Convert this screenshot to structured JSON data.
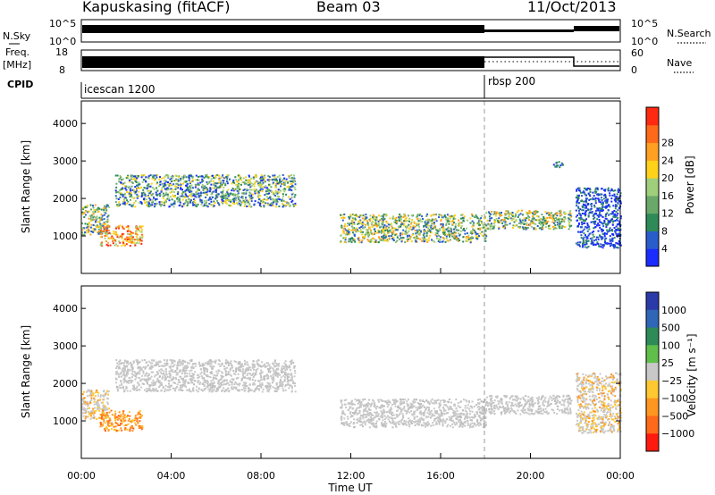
{
  "header": {
    "station": "Kapuskasing (fitACF)",
    "beam": "Beam 03",
    "date": "11/Oct/2013"
  },
  "sidepanels": {
    "nsky_label": "N.Sky",
    "nsky_ticks": [
      "10^5",
      "10^0"
    ],
    "nsearch_label": "N.Search",
    "nsearch_ticks": [
      "10^5",
      "10^0"
    ],
    "freq_label": "Freq.",
    "freq_unit": "[MHz]",
    "freq_ticks": [
      "18",
      "8"
    ],
    "nave_label": "Nave",
    "nave_ticks": [
      "60",
      "0"
    ],
    "cpid_label": "CPID",
    "cpid_segments": [
      {
        "name": "icescan 1200",
        "start_hour": 0
      },
      {
        "name": "rbsp 200",
        "start_hour": 18
      }
    ]
  },
  "axes": {
    "y_label": "Slant Range [km]",
    "y_ticks": [
      "1000",
      "2000",
      "3000",
      "4000"
    ],
    "x_label": "Time UT",
    "x_ticks": [
      "00:00",
      "04:00",
      "08:00",
      "12:00",
      "16:00",
      "20:00",
      "00:00"
    ]
  },
  "colorbars": {
    "power": {
      "label": "Power [dB]",
      "ticks": [
        "4",
        "8",
        "12",
        "16",
        "20",
        "24",
        "28"
      ],
      "colors": [
        "#1a2cff",
        "#2a5dcc",
        "#2e8b57",
        "#6aa86a",
        "#9fcf7a",
        "#ffd21a",
        "#ffa020",
        "#ff6a1a",
        "#ff2a10"
      ]
    },
    "velocity": {
      "label": "Velocity [m s⁻¹]",
      "ticks": [
        "1000",
        "500",
        "100",
        "25",
        "−25",
        "−100",
        "−500",
        "−1000"
      ],
      "colors": [
        "#2a3aa8",
        "#2f66b8",
        "#2e8b57",
        "#5fbf4a",
        "#c8c8c8",
        "#ffc830",
        "#ff9620",
        "#ff6a1a",
        "#ff1a10"
      ]
    }
  },
  "chart_data": [
    {
      "type": "heatmap",
      "name": "Power",
      "x_unit": "hours UT",
      "y_unit": "km",
      "xlim": [
        0,
        24
      ],
      "ylim": [
        0,
        4600
      ],
      "zlabel": "Power [dB]",
      "zlim": [
        0,
        32
      ],
      "regions": [
        {
          "t0": 0.0,
          "t1": 1.2,
          "r0": 1050,
          "r1": 1850,
          "level": "mid"
        },
        {
          "t0": 0.8,
          "t1": 2.7,
          "r0": 750,
          "r1": 1300,
          "level": "high"
        },
        {
          "t0": 1.5,
          "t1": 9.5,
          "r0": 1800,
          "r1": 2650,
          "level": "low-mid"
        },
        {
          "t0": 11.5,
          "t1": 18.0,
          "r0": 850,
          "r1": 1600,
          "level": "mid"
        },
        {
          "t0": 18.0,
          "t1": 21.8,
          "r0": 1200,
          "r1": 1700,
          "level": "mid"
        },
        {
          "t0": 22.0,
          "t1": 24.0,
          "r0": 700,
          "r1": 2300,
          "level": "low"
        },
        {
          "t0": 21.0,
          "t1": 21.5,
          "r0": 2850,
          "r1": 3000,
          "level": "low"
        }
      ]
    },
    {
      "type": "heatmap",
      "name": "Velocity",
      "x_unit": "hours UT",
      "y_unit": "km",
      "xlim": [
        0,
        24
      ],
      "ylim": [
        0,
        4600
      ],
      "zlabel": "Velocity [m s⁻¹]",
      "zlim": [
        -1000,
        1000
      ],
      "regions": [
        {
          "t0": 0.0,
          "t1": 1.2,
          "r0": 1050,
          "r1": 1850,
          "level": "~0 / -100"
        },
        {
          "t0": 0.8,
          "t1": 2.7,
          "r0": 750,
          "r1": 1300,
          "level": "-500"
        },
        {
          "t0": 1.5,
          "t1": 9.5,
          "r0": 1800,
          "r1": 2650,
          "level": "~0"
        },
        {
          "t0": 11.5,
          "t1": 18.0,
          "r0": 850,
          "r1": 1600,
          "level": "~0"
        },
        {
          "t0": 18.0,
          "t1": 21.8,
          "r0": 1200,
          "r1": 1700,
          "level": "~0"
        },
        {
          "t0": 22.0,
          "t1": 24.0,
          "r0": 700,
          "r1": 2300,
          "level": "~0 / -100"
        }
      ]
    }
  ]
}
